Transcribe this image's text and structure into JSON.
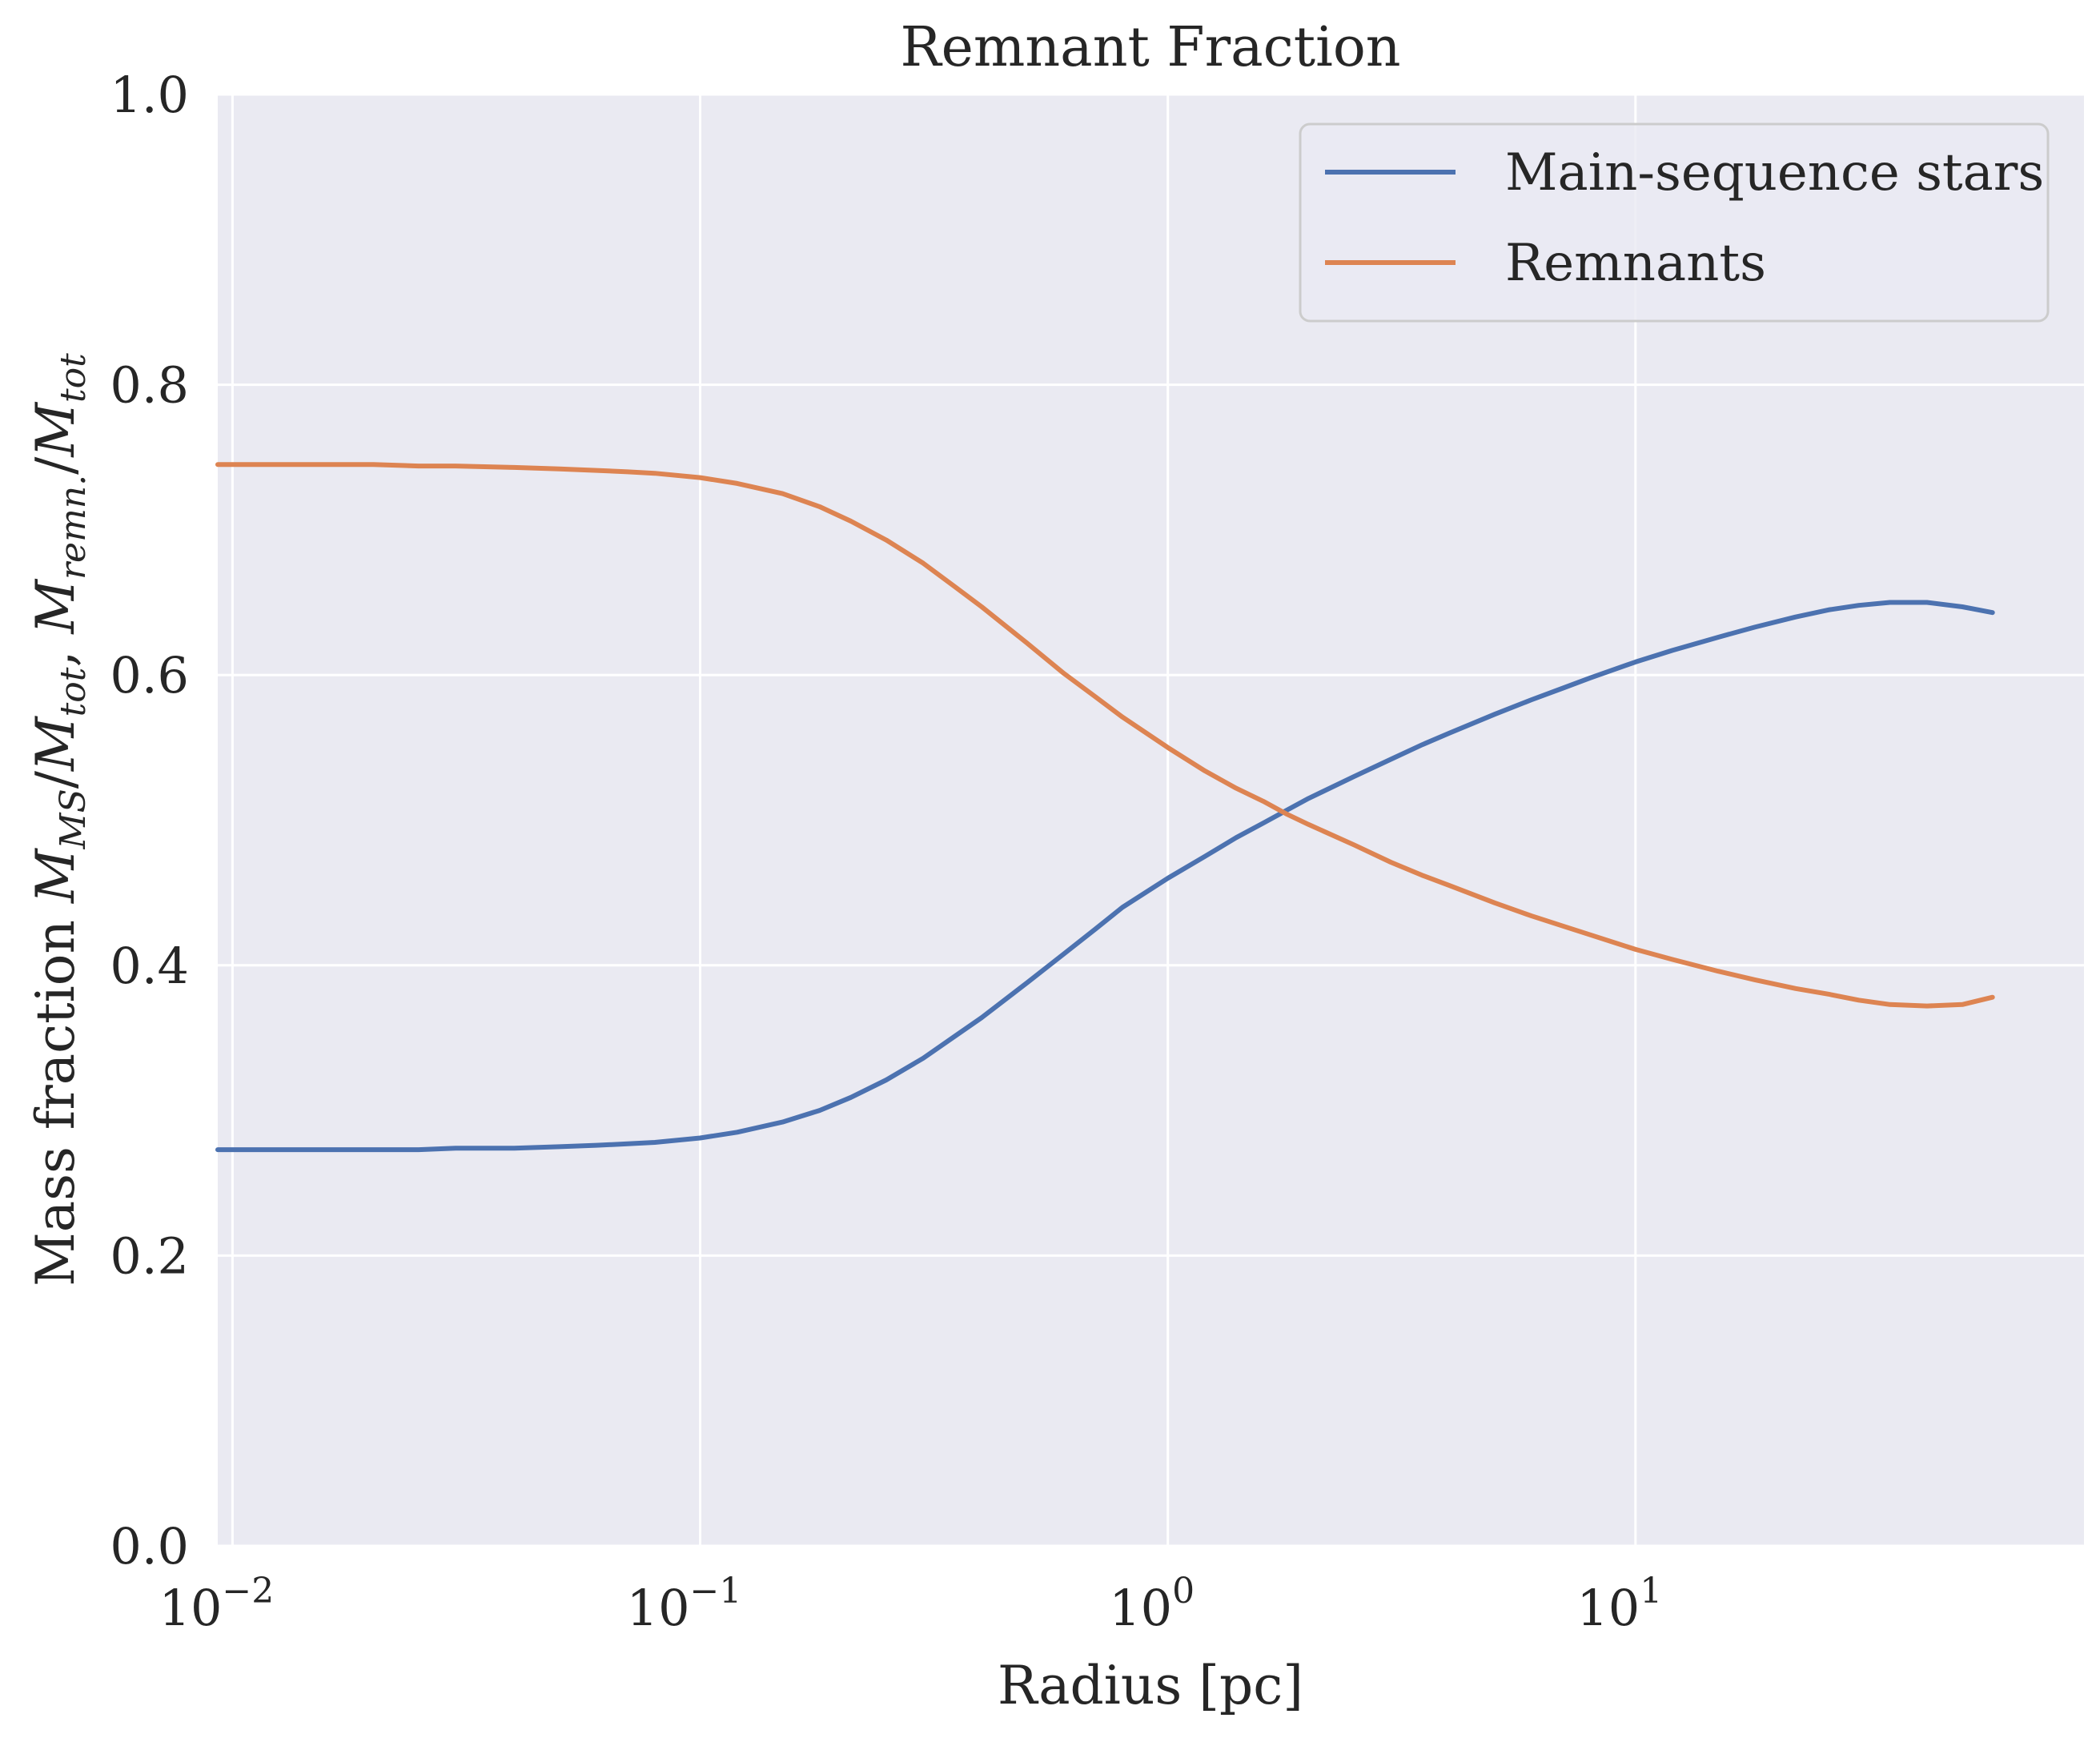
{
  "chart_data": {
    "type": "line",
    "title": "Remnant Fraction",
    "xlabel": "Radius [pc]",
    "ylabel": "Mass fraction M_MS/M_tot, M_remn./M_tot",
    "xscale": "log",
    "xlim": [
      0.0093,
      91
    ],
    "ylim": [
      0,
      1
    ],
    "x_ticks": [
      {
        "value": 0.01,
        "base": "10",
        "exp": "−2"
      },
      {
        "value": 0.1,
        "base": "10",
        "exp": "−1"
      },
      {
        "value": 1,
        "base": "10",
        "exp": "0"
      },
      {
        "value": 10,
        "base": "10",
        "exp": "1"
      }
    ],
    "y_ticks": [
      {
        "value": 0,
        "label": "0.0"
      },
      {
        "value": 0.2,
        "label": "0.2"
      },
      {
        "value": 0.4,
        "label": "0.4"
      },
      {
        "value": 0.6,
        "label": "0.6"
      },
      {
        "value": 0.8,
        "label": "0.8"
      },
      {
        "value": 1,
        "label": "1.0"
      }
    ],
    "grid": true,
    "legend_position": "top-right",
    "x": [
      0.0093,
      0.012,
      0.015,
      0.02,
      0.025,
      0.03,
      0.04,
      0.05,
      0.06,
      0.07,
      0.08,
      0.1,
      0.12,
      0.15,
      0.18,
      0.21,
      0.25,
      0.3,
      0.35,
      0.4,
      0.5,
      0.6,
      0.7,
      0.8,
      1.0,
      1.2,
      1.4,
      1.6,
      1.8,
      2.0,
      2.5,
      3.0,
      3.5,
      4.0,
      5.0,
      6.0,
      7.0,
      8.0,
      10,
      12,
      15,
      18,
      22,
      26,
      30,
      35,
      42,
      50,
      58
    ],
    "series": [
      {
        "name": "Main-sequence stars",
        "color": "#4c72b0",
        "values": [
          0.273,
          0.273,
          0.273,
          0.273,
          0.273,
          0.274,
          0.274,
          0.275,
          0.276,
          0.277,
          0.278,
          0.281,
          0.285,
          0.292,
          0.3,
          0.309,
          0.321,
          0.336,
          0.351,
          0.364,
          0.388,
          0.408,
          0.425,
          0.44,
          0.46,
          0.475,
          0.488,
          0.498,
          0.507,
          0.515,
          0.53,
          0.542,
          0.552,
          0.56,
          0.573,
          0.583,
          0.591,
          0.598,
          0.609,
          0.617,
          0.626,
          0.633,
          0.64,
          0.645,
          0.648,
          0.65,
          0.65,
          0.647,
          0.643
        ]
      },
      {
        "name": "Remnants",
        "color": "#dd8452",
        "values": [
          0.745,
          0.745,
          0.745,
          0.745,
          0.744,
          0.744,
          0.743,
          0.742,
          0.741,
          0.74,
          0.739,
          0.736,
          0.732,
          0.725,
          0.716,
          0.706,
          0.693,
          0.677,
          0.661,
          0.647,
          0.622,
          0.601,
          0.585,
          0.571,
          0.55,
          0.534,
          0.522,
          0.513,
          0.504,
          0.497,
          0.483,
          0.471,
          0.462,
          0.455,
          0.443,
          0.434,
          0.427,
          0.421,
          0.411,
          0.404,
          0.396,
          0.39,
          0.384,
          0.38,
          0.376,
          0.373,
          0.372,
          0.373,
          0.378
        ]
      }
    ]
  }
}
